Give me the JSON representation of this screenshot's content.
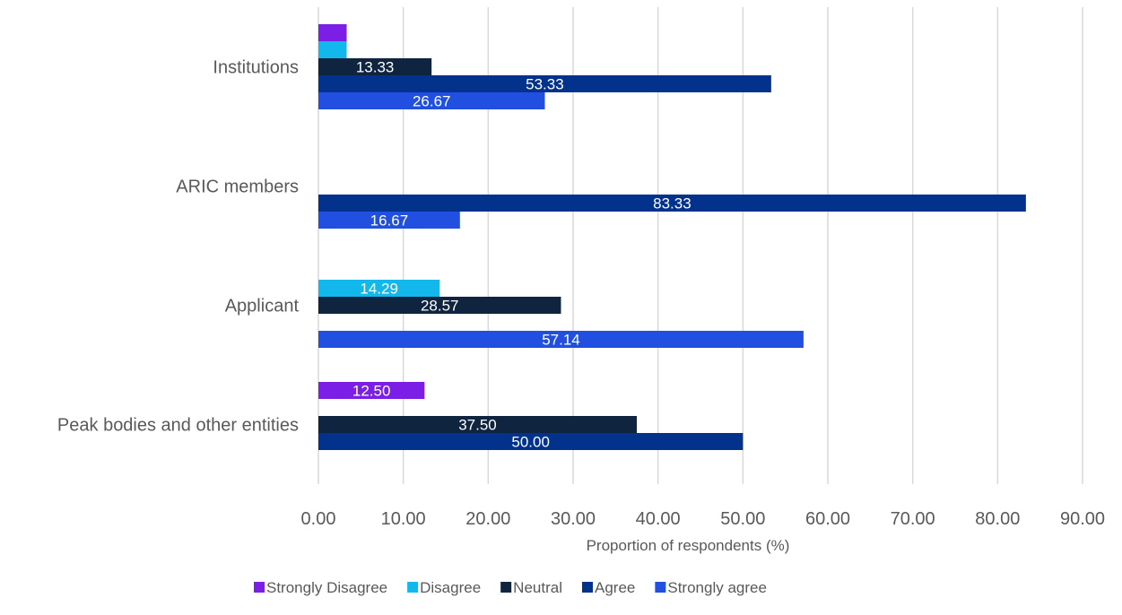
{
  "chart_data": {
    "type": "bar",
    "orientation": "horizontal",
    "title": "",
    "xlabel": "Proportion of respondents (%)",
    "ylabel": "",
    "xlim": [
      0,
      90
    ],
    "x_ticks": [
      "0.00",
      "10.00",
      "20.00",
      "30.00",
      "40.00",
      "50.00",
      "60.00",
      "70.00",
      "80.00",
      "90.00"
    ],
    "grid": "vertical",
    "legend_position": "bottom",
    "categories": [
      "Institutions",
      "ARIC members",
      "Applicant",
      "Peak bodies and other entities"
    ],
    "series": [
      {
        "name": "Strongly Disagree",
        "color": "#7b1fe6",
        "values": [
          3.33,
          0,
          0,
          12.5
        ],
        "labels": [
          "",
          "",
          "",
          "12.50"
        ]
      },
      {
        "name": "Disagree",
        "color": "#12b8ec",
        "values": [
          3.33,
          0,
          14.29,
          0
        ],
        "labels": [
          "",
          "",
          "14.29",
          ""
        ]
      },
      {
        "name": "Neutral",
        "color": "#0e243f",
        "values": [
          13.33,
          0,
          28.57,
          37.5
        ],
        "labels": [
          "13.33",
          "",
          "28.57",
          "37.50"
        ]
      },
      {
        "name": "Agree",
        "color": "#03328c",
        "values": [
          53.33,
          83.33,
          0,
          50.0
        ],
        "labels": [
          "53.33",
          "83.33",
          "",
          "50.00"
        ]
      },
      {
        "name": "Strongly agree",
        "color": "#2150e0",
        "values": [
          26.67,
          16.67,
          57.14,
          0
        ],
        "labels": [
          "26.67",
          "16.67",
          "57.14",
          ""
        ]
      }
    ]
  }
}
